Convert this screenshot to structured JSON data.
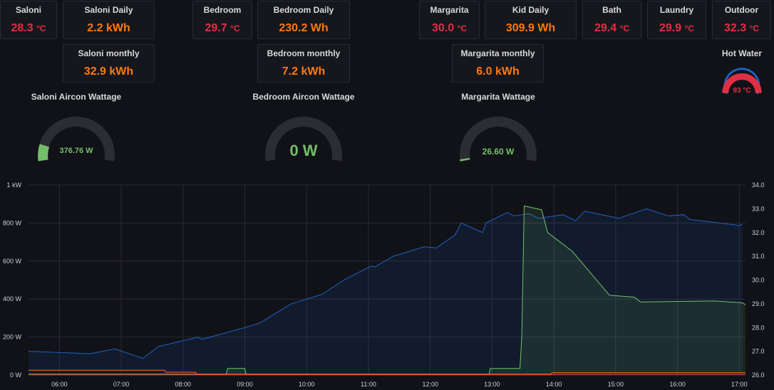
{
  "stats_row1": [
    {
      "title": "Saloni",
      "value": "28.3",
      "unit": "°C",
      "color": "red"
    },
    {
      "title": "Saloni Daily",
      "value": "2.2 kWh",
      "unit": "",
      "color": "orange"
    },
    {
      "title": "Bedroom",
      "value": "29.7",
      "unit": "°C",
      "color": "red"
    },
    {
      "title": "Bedroom Daily",
      "value": "230.2 Wh",
      "unit": "",
      "color": "orange"
    },
    {
      "title": "Margarita",
      "value": "30.0",
      "unit": "°C",
      "color": "red"
    },
    {
      "title": "Kid Daily",
      "value": "309.9 Wh",
      "unit": "",
      "color": "orange"
    },
    {
      "title": "Bath",
      "value": "29.4",
      "unit": "°C",
      "color": "red"
    },
    {
      "title": "Laundry",
      "value": "29.9",
      "unit": "°C",
      "color": "red"
    },
    {
      "title": "Outdoor",
      "value": "32.3",
      "unit": "°C",
      "color": "red"
    }
  ],
  "stats_row2": [
    {
      "title": "Saloni monthly",
      "value": "32.9 kWh",
      "color": "orange"
    },
    {
      "title": "Bedroom monthly",
      "value": "7.2 kWh",
      "color": "orange"
    },
    {
      "title": "Margarita monthly",
      "value": "6.0 kWh",
      "color": "orange"
    }
  ],
  "hot_water": {
    "title": "Hot Water",
    "value": "93 °C",
    "level": 0.93
  },
  "gauges": [
    {
      "title": "Saloni Aircon Wattage",
      "value": "376.76 W",
      "level": 0.13
    },
    {
      "title": "Bedroom Aircon Wattage",
      "value": "0 W",
      "level": 0.0
    },
    {
      "title": "Margarita Wattage",
      "value": "26.60 W",
      "level": 0.01
    }
  ],
  "colors": {
    "background": "#111217",
    "red": "#e02f44",
    "orange": "#ff780a",
    "green": "#73bf69",
    "blue": "#1f60c4",
    "yellow": "#fade2a"
  },
  "chart_data": {
    "type": "line",
    "x_ticks": [
      "06:00",
      "07:00",
      "08:00",
      "09:00",
      "10:00",
      "11:00",
      "12:00",
      "13:00",
      "14:00",
      "15:00",
      "16:00",
      "17:00"
    ],
    "y_left_ticks": [
      "0 W",
      "200 W",
      "400 W",
      "600 W",
      "800 W",
      "1 kW"
    ],
    "y_right_ticks": [
      "26.0",
      "27.0",
      "28.0",
      "29.0",
      "30.0",
      "31.0",
      "32.0",
      "33.0",
      "34.0"
    ],
    "y_left_range": [
      0,
      1000
    ],
    "y_right_range": [
      26,
      34
    ],
    "grid": true,
    "series": [
      {
        "axis": "right",
        "color": "#1f60c4",
        "fill": true,
        "points": [
          [
            5.5,
            27.0
          ],
          [
            6.5,
            26.9
          ],
          [
            6.9,
            27.1
          ],
          [
            7.35,
            26.7
          ],
          [
            7.6,
            27.2
          ],
          [
            8.25,
            27.6
          ],
          [
            8.3,
            27.5
          ],
          [
            9.0,
            28.0
          ],
          [
            9.25,
            28.2
          ],
          [
            9.75,
            29.0
          ],
          [
            10.25,
            29.4
          ],
          [
            10.6,
            30.0
          ],
          [
            11.05,
            30.6
          ],
          [
            11.1,
            30.55
          ],
          [
            11.4,
            31.0
          ],
          [
            11.9,
            31.4
          ],
          [
            12.1,
            31.35
          ],
          [
            12.4,
            31.9
          ],
          [
            12.5,
            32.4
          ],
          [
            12.85,
            32.0
          ],
          [
            12.9,
            32.4
          ],
          [
            13.25,
            32.85
          ],
          [
            13.35,
            32.7
          ],
          [
            13.6,
            32.8
          ],
          [
            13.75,
            32.6
          ],
          [
            14.15,
            32.75
          ],
          [
            14.35,
            32.5
          ],
          [
            14.5,
            32.9
          ],
          [
            15.05,
            32.6
          ],
          [
            15.5,
            33.0
          ],
          [
            15.85,
            32.7
          ],
          [
            16.1,
            32.75
          ],
          [
            16.2,
            32.55
          ],
          [
            17.0,
            32.3
          ],
          [
            17.05,
            32.35
          ]
        ]
      },
      {
        "axis": "left",
        "color": "#73bf69",
        "fill": true,
        "points": [
          [
            5.5,
            5
          ],
          [
            8.7,
            5
          ],
          [
            8.72,
            35
          ],
          [
            9.0,
            35
          ],
          [
            9.02,
            5
          ],
          [
            12.95,
            5
          ],
          [
            12.97,
            35
          ],
          [
            13.45,
            35
          ],
          [
            13.48,
            200
          ],
          [
            13.52,
            890
          ],
          [
            13.8,
            870
          ],
          [
            13.9,
            750
          ],
          [
            14.3,
            650
          ],
          [
            14.9,
            420
          ],
          [
            15.3,
            410
          ],
          [
            15.4,
            385
          ],
          [
            16.6,
            390
          ],
          [
            17.05,
            380
          ],
          [
            17.1,
            370
          ]
        ]
      },
      {
        "axis": "left",
        "color": "#ff780a",
        "fill": false,
        "points": [
          [
            5.5,
            25
          ],
          [
            7.7,
            25
          ],
          [
            7.72,
            15
          ],
          [
            8.2,
            15
          ],
          [
            8.22,
            5
          ],
          [
            13.95,
            5
          ],
          [
            13.97,
            12
          ],
          [
            17.1,
            12
          ]
        ]
      },
      {
        "axis": "left",
        "color": "#e02f44",
        "fill": false,
        "points": [
          [
            5.5,
            1
          ],
          [
            13.95,
            1
          ],
          [
            13.97,
            3
          ],
          [
            17.1,
            3
          ]
        ]
      }
    ]
  }
}
